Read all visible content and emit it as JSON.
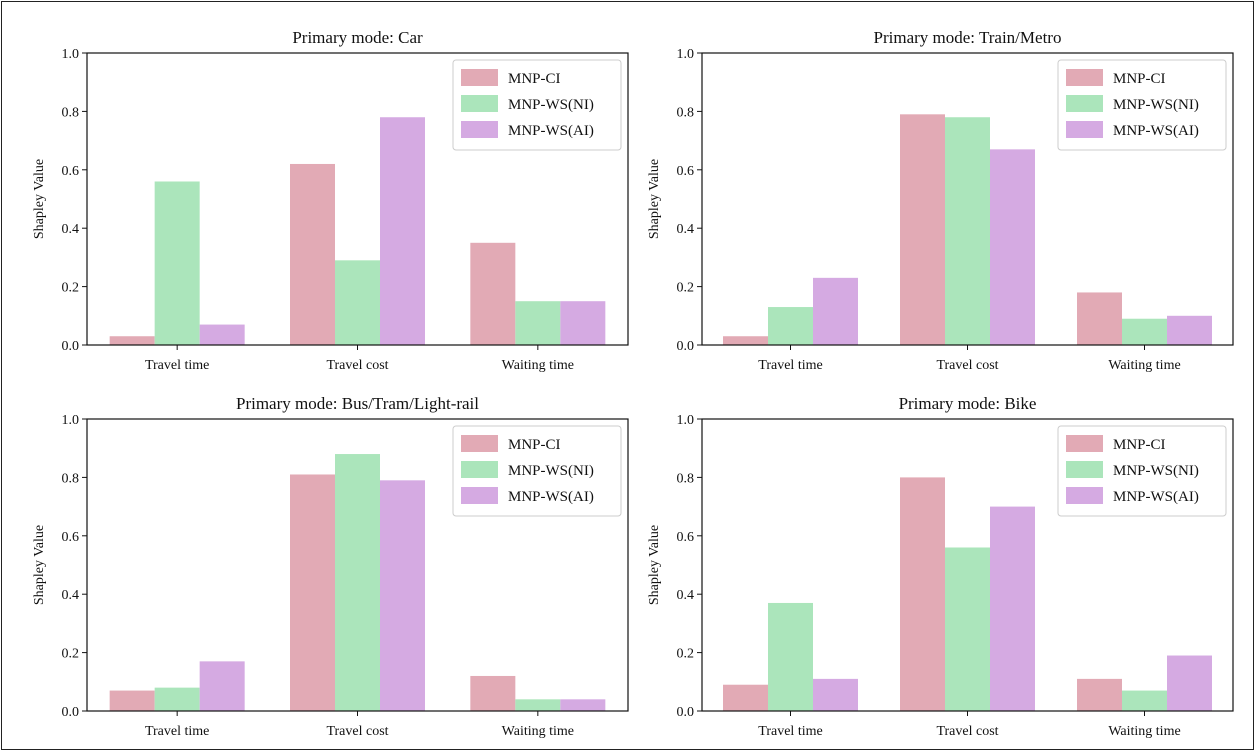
{
  "chart_data": [
    {
      "type": "bar",
      "title": "Primary mode: Car",
      "ylabel": "Shapley Value",
      "ylim": [
        0,
        1.0
      ],
      "yticks": [
        "0.0",
        "0.2",
        "0.4",
        "0.6",
        "0.8",
        "1.0"
      ],
      "categories": [
        "Travel time",
        "Travel cost",
        "Waiting time"
      ],
      "legend_position": "top-right",
      "series": [
        {
          "name": "MNP-CI",
          "color": "#e2aab5",
          "values": [
            0.03,
            0.62,
            0.35
          ]
        },
        {
          "name": "MNP-WS(NI)",
          "color": "#abe5bb",
          "values": [
            0.56,
            0.29,
            0.15
          ]
        },
        {
          "name": "MNP-WS(AI)",
          "color": "#d5aae2",
          "values": [
            0.07,
            0.78,
            0.15
          ]
        }
      ]
    },
    {
      "type": "bar",
      "title": "Primary mode: Train/Metro",
      "ylabel": "Shapley Value",
      "ylim": [
        0,
        1.0
      ],
      "yticks": [
        "0.0",
        "0.2",
        "0.4",
        "0.6",
        "0.8",
        "1.0"
      ],
      "categories": [
        "Travel time",
        "Travel cost",
        "Waiting time"
      ],
      "legend_position": "top-right",
      "series": [
        {
          "name": "MNP-CI",
          "color": "#e2aab5",
          "values": [
            0.03,
            0.79,
            0.18
          ]
        },
        {
          "name": "MNP-WS(NI)",
          "color": "#abe5bb",
          "values": [
            0.13,
            0.78,
            0.09
          ]
        },
        {
          "name": "MNP-WS(AI)",
          "color": "#d5aae2",
          "values": [
            0.23,
            0.67,
            0.1
          ]
        }
      ]
    },
    {
      "type": "bar",
      "title": "Primary mode: Bus/Tram/Light-rail",
      "ylabel": "Shapley Value",
      "ylim": [
        0,
        1.0
      ],
      "yticks": [
        "0.0",
        "0.2",
        "0.4",
        "0.6",
        "0.8",
        "1.0"
      ],
      "categories": [
        "Travel time",
        "Travel cost",
        "Waiting time"
      ],
      "legend_position": "top-right",
      "series": [
        {
          "name": "MNP-CI",
          "color": "#e2aab5",
          "values": [
            0.07,
            0.81,
            0.12
          ]
        },
        {
          "name": "MNP-WS(NI)",
          "color": "#abe5bb",
          "values": [
            0.08,
            0.88,
            0.04
          ]
        },
        {
          "name": "MNP-WS(AI)",
          "color": "#d5aae2",
          "values": [
            0.17,
            0.79,
            0.04
          ]
        }
      ]
    },
    {
      "type": "bar",
      "title": "Primary mode: Bike",
      "ylabel": "Shapley Value",
      "ylim": [
        0,
        1.0
      ],
      "yticks": [
        "0.0",
        "0.2",
        "0.4",
        "0.6",
        "0.8",
        "1.0"
      ],
      "categories": [
        "Travel time",
        "Travel cost",
        "Waiting time"
      ],
      "legend_position": "top-right",
      "series": [
        {
          "name": "MNP-CI",
          "color": "#e2aab5",
          "values": [
            0.09,
            0.8,
            0.11
          ]
        },
        {
          "name": "MNP-WS(NI)",
          "color": "#abe5bb",
          "values": [
            0.37,
            0.56,
            0.07
          ]
        },
        {
          "name": "MNP-WS(AI)",
          "color": "#d5aae2",
          "values": [
            0.11,
            0.7,
            0.19
          ]
        }
      ]
    }
  ]
}
